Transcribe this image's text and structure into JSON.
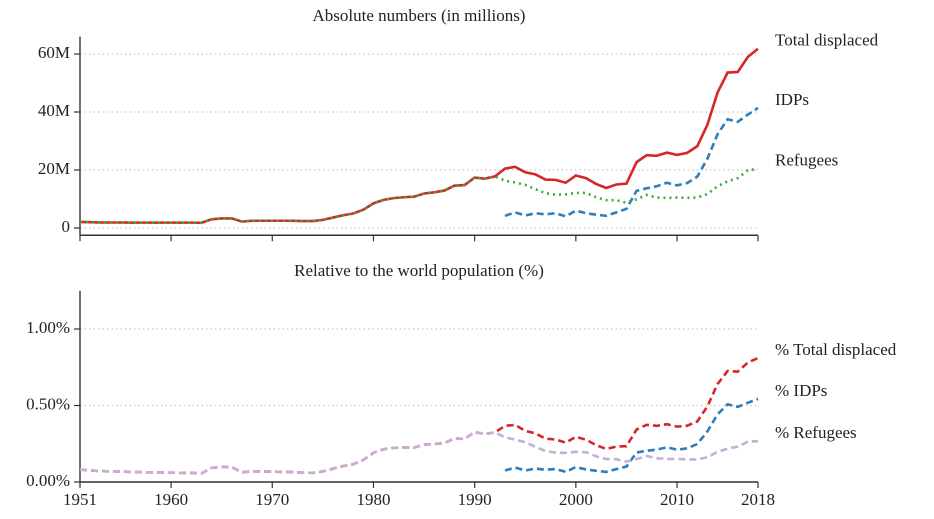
{
  "chart_data": [
    {
      "type": "line",
      "title": "Absolute numbers (in millions)",
      "x": [
        1951,
        1952,
        1953,
        1954,
        1955,
        1956,
        1957,
        1958,
        1959,
        1960,
        1961,
        1962,
        1963,
        1964,
        1965,
        1966,
        1967,
        1968,
        1969,
        1970,
        1971,
        1972,
        1973,
        1974,
        1975,
        1976,
        1977,
        1978,
        1979,
        1980,
        1981,
        1982,
        1983,
        1984,
        1985,
        1986,
        1987,
        1988,
        1989,
        1990,
        1991,
        1992,
        1993,
        1994,
        1995,
        1996,
        1997,
        1998,
        1999,
        2000,
        2001,
        2002,
        2003,
        2004,
        2005,
        2006,
        2007,
        2008,
        2009,
        2010,
        2011,
        2012,
        2013,
        2014,
        2015,
        2016,
        2017,
        2018
      ],
      "xlim": [
        1951,
        2018
      ],
      "xticks": [
        1951,
        1960,
        1970,
        1980,
        1990,
        2000,
        2010,
        2018
      ],
      "ylim": [
        -2.5,
        66
      ],
      "yticks": [
        0,
        {
          "value": 20,
          "label": "20M"
        },
        {
          "value": 40,
          "label": "40M"
        },
        {
          "value": 60,
          "label": "60M"
        }
      ],
      "grid": true,
      "series": [
        {
          "name": "Total displaced",
          "color": "#d62728",
          "linestyle": "solid",
          "values": [
            2.1,
            2.0,
            1.9,
            1.9,
            1.9,
            1.85,
            1.85,
            1.85,
            1.85,
            1.85,
            1.85,
            1.85,
            1.8,
            3.0,
            3.3,
            3.3,
            2.2,
            2.5,
            2.5,
            2.5,
            2.5,
            2.5,
            2.4,
            2.4,
            2.8,
            3.6,
            4.4,
            5.0,
            6.3,
            8.5,
            9.7,
            10.3,
            10.6,
            10.8,
            11.9,
            12.3,
            12.9,
            14.6,
            14.8,
            17.4,
            17.0,
            17.8,
            20.5,
            21.1,
            19.2,
            18.5,
            16.7,
            16.6,
            15.6,
            18.1,
            17.2,
            15.2,
            13.8,
            15.0,
            15.3,
            22.7,
            25.1,
            24.9,
            26.0,
            25.2,
            25.9,
            28.2,
            35.6,
            46.7,
            53.6,
            53.8,
            59.0,
            61.8
          ]
        },
        {
          "name": "IDPs",
          "color": "#2e7ebc",
          "linestyle": "dashed",
          "values": [
            null,
            null,
            null,
            null,
            null,
            null,
            null,
            null,
            null,
            null,
            null,
            null,
            null,
            null,
            null,
            null,
            null,
            null,
            null,
            null,
            null,
            null,
            null,
            null,
            null,
            null,
            null,
            null,
            null,
            null,
            null,
            null,
            null,
            null,
            null,
            null,
            null,
            null,
            null,
            null,
            null,
            null,
            4.2,
            5.4,
            4.3,
            5.1,
            4.7,
            5.1,
            4.0,
            6.0,
            5.1,
            4.6,
            4.2,
            5.4,
            6.6,
            12.8,
            13.7,
            14.4,
            15.6,
            14.7,
            15.5,
            17.7,
            23.9,
            32.3,
            37.5,
            36.6,
            39.1,
            41.4
          ]
        },
        {
          "name": "Refugees",
          "color": "#3daa3d",
          "linestyle": "dotted",
          "values": [
            2.1,
            2.0,
            1.9,
            1.9,
            1.9,
            1.85,
            1.85,
            1.85,
            1.85,
            1.85,
            1.85,
            1.85,
            1.8,
            3.0,
            3.3,
            3.3,
            2.2,
            2.5,
            2.5,
            2.5,
            2.5,
            2.5,
            2.4,
            2.4,
            2.8,
            3.6,
            4.4,
            5.0,
            6.3,
            8.5,
            9.7,
            10.3,
            10.6,
            10.8,
            11.9,
            12.3,
            12.9,
            14.6,
            14.8,
            17.4,
            17.0,
            17.8,
            16.3,
            15.7,
            14.9,
            13.4,
            12.0,
            11.5,
            11.6,
            12.1,
            12.1,
            10.6,
            9.6,
            9.6,
            8.7,
            9.9,
            11.4,
            10.5,
            10.4,
            10.5,
            10.4,
            10.5,
            11.7,
            14.4,
            16.1,
            17.2,
            19.9,
            20.4
          ]
        }
      ]
    },
    {
      "type": "line",
      "title": "Relative to the world population (%)",
      "x": [
        1951,
        1952,
        1953,
        1954,
        1955,
        1956,
        1957,
        1958,
        1959,
        1960,
        1961,
        1962,
        1963,
        1964,
        1965,
        1966,
        1967,
        1968,
        1969,
        1970,
        1971,
        1972,
        1973,
        1974,
        1975,
        1976,
        1977,
        1978,
        1979,
        1980,
        1981,
        1982,
        1983,
        1984,
        1985,
        1986,
        1987,
        1988,
        1989,
        1990,
        1991,
        1992,
        1993,
        1994,
        1995,
        1996,
        1997,
        1998,
        1999,
        2000,
        2001,
        2002,
        2003,
        2004,
        2005,
        2006,
        2007,
        2008,
        2009,
        2010,
        2011,
        2012,
        2013,
        2014,
        2015,
        2016,
        2017,
        2018
      ],
      "xlim": [
        1951,
        2018
      ],
      "xticks": [
        1951,
        1960,
        1970,
        1980,
        1990,
        2000,
        2010,
        2018
      ],
      "ylim": [
        0,
        1.25
      ],
      "yticks": [
        {
          "value": 0,
          "label": "0.00%"
        },
        {
          "value": 0.5,
          "label": "0.50%"
        },
        {
          "value": 1.0,
          "label": "1.00%"
        }
      ],
      "grid": true,
      "series": [
        {
          "name": "% Total displaced",
          "color": "#d62728",
          "linestyle": "dashed",
          "values": [
            0.081,
            0.076,
            0.071,
            0.07,
            0.069,
            0.066,
            0.064,
            0.063,
            0.062,
            0.061,
            0.06,
            0.059,
            0.056,
            0.092,
            0.099,
            0.097,
            0.063,
            0.07,
            0.069,
            0.068,
            0.066,
            0.065,
            0.061,
            0.06,
            0.069,
            0.087,
            0.104,
            0.116,
            0.144,
            0.191,
            0.214,
            0.223,
            0.226,
            0.225,
            0.244,
            0.248,
            0.255,
            0.284,
            0.282,
            0.326,
            0.314,
            0.324,
            0.367,
            0.373,
            0.334,
            0.318,
            0.283,
            0.278,
            0.257,
            0.295,
            0.277,
            0.241,
            0.216,
            0.232,
            0.234,
            0.343,
            0.374,
            0.367,
            0.378,
            0.362,
            0.368,
            0.396,
            0.494,
            0.64,
            0.726,
            0.721,
            0.781,
            0.81
          ]
        },
        {
          "name": "% IDPs",
          "color": "#2e7ebc",
          "linestyle": "dashed",
          "values": [
            null,
            null,
            null,
            null,
            null,
            null,
            null,
            null,
            null,
            null,
            null,
            null,
            null,
            null,
            null,
            null,
            null,
            null,
            null,
            null,
            null,
            null,
            null,
            null,
            null,
            null,
            null,
            null,
            null,
            null,
            null,
            null,
            null,
            null,
            null,
            null,
            null,
            null,
            null,
            null,
            null,
            null,
            0.075,
            0.095,
            0.075,
            0.088,
            0.08,
            0.085,
            0.066,
            0.098,
            0.082,
            0.073,
            0.066,
            0.084,
            0.101,
            0.193,
            0.204,
            0.212,
            0.227,
            0.211,
            0.22,
            0.248,
            0.331,
            0.442,
            0.508,
            0.491,
            0.518,
            0.543
          ]
        },
        {
          "name": "% Refugees",
          "color": "#c5b0d5",
          "label_color": "#3daa3d",
          "linestyle": "dashed",
          "values": [
            0.081,
            0.076,
            0.071,
            0.07,
            0.069,
            0.066,
            0.064,
            0.063,
            0.062,
            0.061,
            0.06,
            0.059,
            0.056,
            0.092,
            0.099,
            0.097,
            0.063,
            0.07,
            0.069,
            0.068,
            0.066,
            0.065,
            0.061,
            0.06,
            0.069,
            0.087,
            0.104,
            0.116,
            0.144,
            0.191,
            0.214,
            0.223,
            0.226,
            0.225,
            0.244,
            0.248,
            0.255,
            0.284,
            0.282,
            0.326,
            0.314,
            0.324,
            0.292,
            0.277,
            0.26,
            0.23,
            0.203,
            0.192,
            0.191,
            0.197,
            0.195,
            0.168,
            0.15,
            0.149,
            0.133,
            0.15,
            0.17,
            0.155,
            0.151,
            0.151,
            0.148,
            0.147,
            0.162,
            0.197,
            0.218,
            0.231,
            0.264,
            0.267
          ]
        }
      ]
    }
  ]
}
